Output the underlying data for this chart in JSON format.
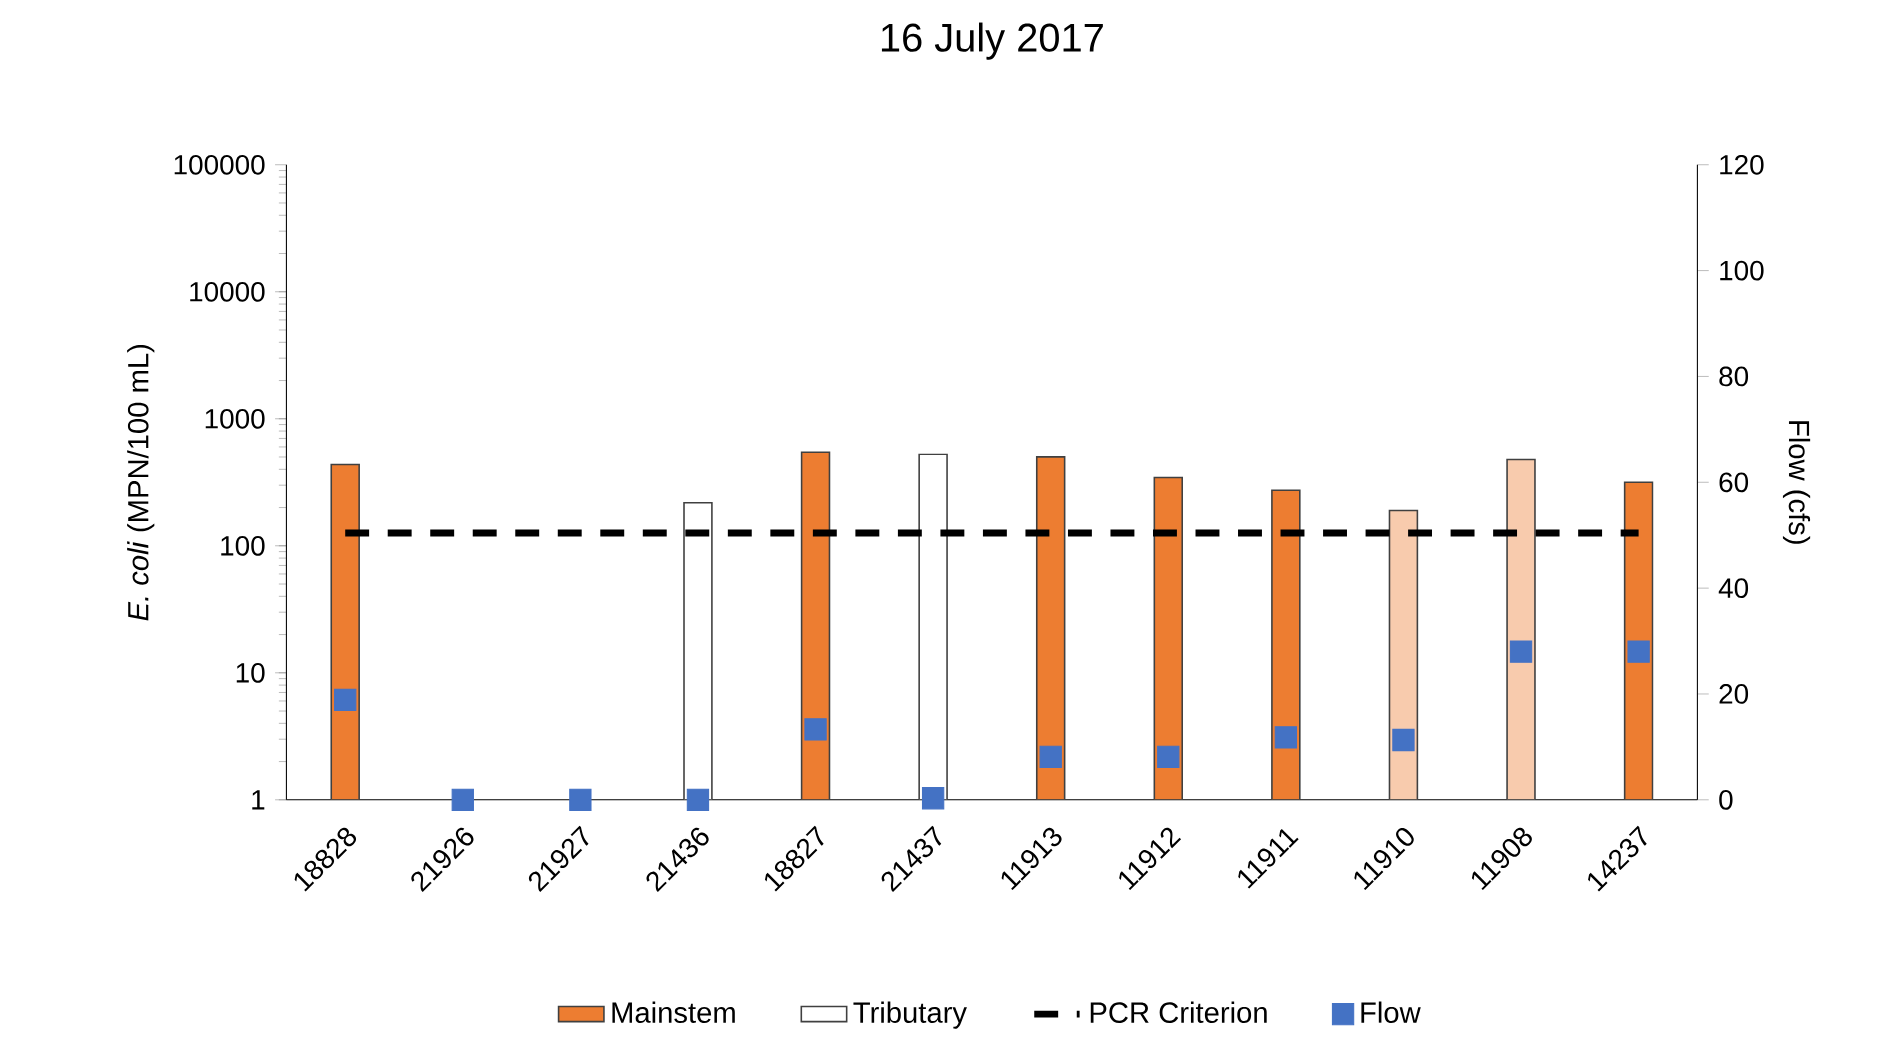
{
  "chart_data": {
    "type": "bar",
    "title": "16 July 2017",
    "ylabel": "*E. coli* (MPN/100 mL)",
    "y2label": "Flow (cfs)",
    "categories": [
      "18828",
      "21926",
      "21927",
      "21436",
      "18827",
      "21437",
      "11913",
      "11912",
      "11911",
      "11910",
      "11908",
      "14237"
    ],
    "log": "y",
    "ylim": [
      1,
      100000
    ],
    "yticks": [
      1,
      10,
      100,
      1000,
      10000,
      100000
    ],
    "y2lim": [
      0,
      120
    ],
    "y2ticks": [
      0,
      20,
      40,
      60,
      80,
      100,
      120
    ],
    "series": [
      {
        "name": "Mainstem",
        "color": "#ed7d31",
        "colors": [
          "#ed7d31",
          "#ed7d31",
          "#ed7d31",
          "#ed7d31",
          "#ed7d31",
          "#ed7d31",
          "#ed7d31",
          "#ed7d31",
          "#ed7d31",
          "#f8cbad",
          "#f8cbad",
          "#ed7d31"
        ],
        "values": [
          437,
          null,
          null,
          null,
          545,
          null,
          501,
          345,
          274,
          190,
          478,
          316
        ]
      },
      {
        "name": "Tributary",
        "color": "#ffffff",
        "values": [
          null,
          null,
          null,
          218,
          null,
          525,
          null,
          null,
          null,
          null,
          null,
          null
        ]
      },
      {
        "name": "Flow",
        "type": "scatter",
        "axis": "y2",
        "marker": "square",
        "color": "#4472c4",
        "values": [
          18.9,
          0,
          0,
          0,
          13.3,
          0.3,
          8.1,
          8.1,
          11.8,
          11.3,
          28,
          28
        ]
      }
    ],
    "ref_lines": [
      {
        "axis": "y",
        "value": 126,
        "label": "PCR Criterion",
        "color": "#000000",
        "line_style": "dashed"
      }
    ],
    "legend": "bottom"
  }
}
